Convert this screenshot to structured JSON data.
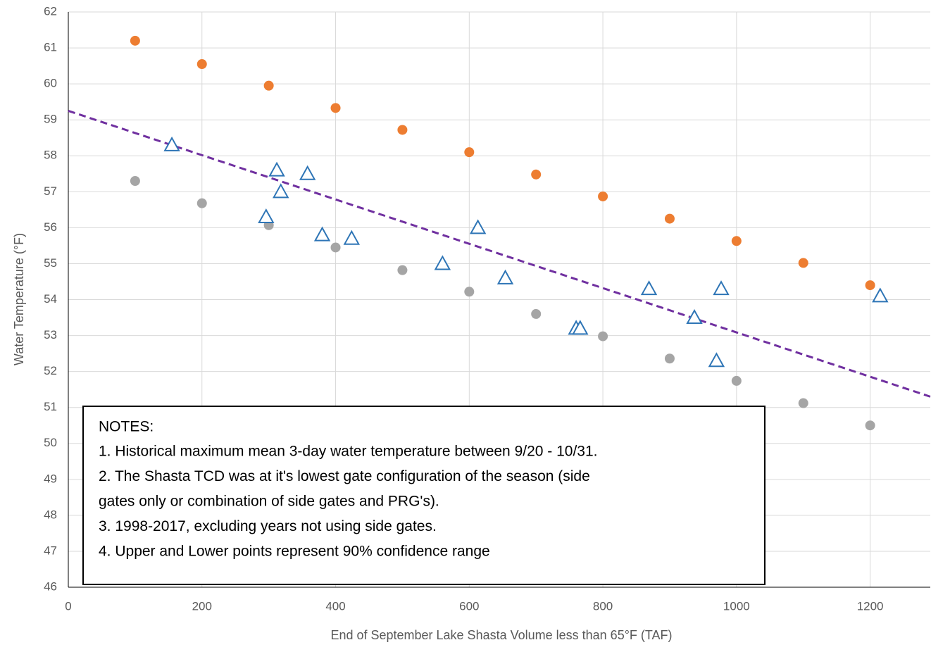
{
  "chart_data": {
    "type": "scatter",
    "x_label": "End of September Lake Shasta Volume less than 65°F (TAF)",
    "y_label": "Water Temperature (°F)",
    "xlim": [
      0,
      1290
    ],
    "ylim": [
      46,
      62
    ],
    "xticks": [
      0,
      200,
      400,
      600,
      800,
      1000,
      1200
    ],
    "yticks": [
      46,
      47,
      48,
      49,
      50,
      51,
      52,
      53,
      54,
      55,
      56,
      57,
      58,
      59,
      60,
      61,
      62
    ],
    "grid": true,
    "series": [
      {
        "color": "#ed7d31",
        "marker": "circle",
        "x": [
          100,
          200,
          300,
          400,
          500,
          600,
          700,
          800,
          900,
          1000,
          1100,
          1200
        ],
        "values": [
          61.2,
          60.55,
          59.95,
          59.33,
          58.72,
          58.1,
          57.48,
          56.87,
          56.25,
          55.63,
          55.02,
          54.4
        ]
      },
      {
        "color": "#a5a5a5",
        "marker": "circle",
        "x": [
          100,
          200,
          300,
          400,
          500,
          600,
          700,
          800,
          900,
          1000,
          1100,
          1200
        ],
        "values": [
          57.3,
          56.68,
          56.07,
          55.45,
          54.82,
          54.22,
          53.6,
          52.98,
          52.36,
          51.74,
          51.12,
          50.5
        ]
      },
      {
        "color": "#2e75b6",
        "marker": "triangle",
        "x": [
          155,
          296,
          312,
          318,
          358,
          380,
          424,
          560,
          613,
          654,
          760,
          766,
          869,
          937,
          970,
          977,
          1215
        ],
        "values": [
          58.3,
          56.3,
          57.6,
          57.0,
          57.5,
          55.8,
          55.7,
          55.0,
          56.0,
          54.6,
          53.2,
          53.2,
          54.3,
          53.5,
          52.3,
          54.3,
          54.1
        ]
      }
    ],
    "trendline": {
      "color": "#7030a0",
      "x": [
        0,
        1290
      ],
      "y": [
        59.25,
        51.3
      ]
    },
    "notes": {
      "title": "NOTES:",
      "lines": [
        "1. Historical maximum mean 3-day water temperature between 9/20 - 10/31.",
        "2. The Shasta TCD was at it's lowest gate configuration of the season (side",
        "gates only or combination of side gates and PRG's).",
        "3. 1998-2017, excluding years not using side gates.",
        "4. Upper and Lower points represent 90% confidence range"
      ]
    }
  }
}
